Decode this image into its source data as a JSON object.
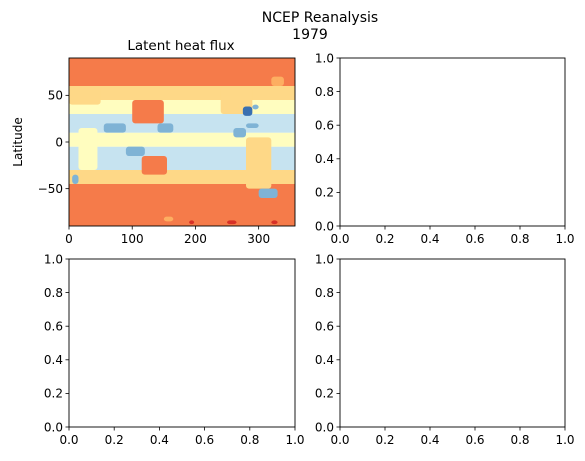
{
  "figure": {
    "suptitle_line1": "NCEP Reanalysis",
    "suptitle_line2": "1979"
  },
  "colors": {
    "deep_red": "#d73027",
    "orange_red": "#f57b4a",
    "light_orange": "#fdae61",
    "tan": "#fed887",
    "pale_yellow": "#fffdbf",
    "pale_blue": "#c6e3f0",
    "mid_blue": "#7fb3d5",
    "dark_blue": "#3a6fb0"
  },
  "chart_data": [
    {
      "panel": "top-left",
      "type": "heatmap",
      "title": "Latent heat flux",
      "xlabel": "",
      "ylabel": "Latitude",
      "xlim": [
        0,
        357.5
      ],
      "ylim": [
        -90,
        90
      ],
      "xticks": [
        0,
        100,
        200,
        300
      ],
      "yticks": [
        -50,
        0,
        50
      ],
      "xtick_labels": [
        "0",
        "100",
        "200",
        "300"
      ],
      "ytick_labels": [
        "−50",
        "0",
        "50"
      ],
      "bands": [
        {
          "lat_range": [
            -90,
            -45
          ],
          "color": "orange_red"
        },
        {
          "lat_range": [
            -45,
            -30
          ],
          "color": "tan"
        },
        {
          "lat_range": [
            -30,
            -5
          ],
          "color": "pale_blue"
        },
        {
          "lat_range": [
            -5,
            10
          ],
          "color": "pale_yellow"
        },
        {
          "lat_range": [
            10,
            30
          ],
          "color": "pale_blue"
        },
        {
          "lat_range": [
            30,
            45
          ],
          "color": "pale_yellow"
        },
        {
          "lat_range": [
            45,
            60
          ],
          "color": "tan"
        },
        {
          "lat_range": [
            60,
            90
          ],
          "color": "orange_red"
        }
      ],
      "patches": [
        {
          "lon": [
            0,
            50
          ],
          "lat": [
            40,
            60
          ],
          "color": "tan"
        },
        {
          "lon": [
            100,
            150
          ],
          "lat": [
            20,
            45
          ],
          "color": "orange_red"
        },
        {
          "lon": [
            15,
            45
          ],
          "lat": [
            -30,
            15
          ],
          "color": "pale_yellow"
        },
        {
          "lon": [
            115,
            155
          ],
          "lat": [
            -35,
            -15
          ],
          "color": "orange_red"
        },
        {
          "lon": [
            280,
            320
          ],
          "lat": [
            -50,
            5
          ],
          "color": "tan"
        },
        {
          "lon": [
            240,
            290
          ],
          "lat": [
            30,
            60
          ],
          "color": "tan"
        },
        {
          "lon": [
            55,
            90
          ],
          "lat": [
            10,
            20
          ],
          "color": "mid_blue"
        },
        {
          "lon": [
            140,
            165
          ],
          "lat": [
            10,
            20
          ],
          "color": "mid_blue"
        },
        {
          "lon": [
            260,
            280
          ],
          "lat": [
            5,
            15
          ],
          "color": "mid_blue"
        },
        {
          "lon": [
            90,
            120
          ],
          "lat": [
            -15,
            -5
          ],
          "color": "mid_blue"
        },
        {
          "lon": [
            5,
            15
          ],
          "lat": [
            -45,
            -35
          ],
          "color": "mid_blue"
        },
        {
          "lon": [
            300,
            330
          ],
          "lat": [
            -60,
            -50
          ],
          "color": "mid_blue"
        },
        {
          "lon": [
            320,
            340
          ],
          "lat": [
            60,
            70
          ],
          "color": "light_orange"
        },
        {
          "lon": [
            150,
            165
          ],
          "lat": [
            -85,
            -80
          ],
          "color": "light_orange"
        },
        {
          "lon": [
            280,
            300
          ],
          "lat": [
            15,
            20
          ],
          "color": "mid_blue"
        },
        {
          "lon": [
            275,
            290
          ],
          "lat": [
            28,
            38
          ],
          "color": "dark_blue"
        },
        {
          "lon": [
            290,
            300
          ],
          "lat": [
            35,
            40
          ],
          "color": "mid_blue"
        },
        {
          "lon": [
            190,
            198
          ],
          "lat": [
            -88,
            -84
          ],
          "color": "deep_red"
        },
        {
          "lon": [
            250,
            265
          ],
          "lat": [
            -88,
            -84
          ],
          "color": "deep_red"
        },
        {
          "lon": [
            320,
            330
          ],
          "lat": [
            -88,
            -84
          ],
          "color": "deep_red"
        }
      ]
    },
    {
      "panel": "top-right",
      "type": "scatter",
      "xlim": [
        0,
        1
      ],
      "ylim": [
        0,
        1
      ],
      "xtick_labels": [
        "0.0",
        "0.2",
        "0.4",
        "0.6",
        "0.8",
        "1.0"
      ],
      "ytick_labels": [
        "0.0",
        "0.2",
        "0.4",
        "0.6",
        "0.8",
        "1.0"
      ]
    },
    {
      "panel": "bottom-left",
      "type": "scatter",
      "xlim": [
        0,
        1
      ],
      "ylim": [
        0,
        1
      ],
      "xtick_labels": [
        "0.0",
        "0.2",
        "0.4",
        "0.6",
        "0.8",
        "1.0"
      ],
      "ytick_labels": [
        "0.0",
        "0.2",
        "0.4",
        "0.6",
        "0.8",
        "1.0"
      ]
    },
    {
      "panel": "bottom-right",
      "type": "scatter",
      "xlim": [
        0,
        1
      ],
      "ylim": [
        0,
        1
      ],
      "xtick_labels": [
        "0.0",
        "0.2",
        "0.4",
        "0.6",
        "0.8",
        "1.0"
      ],
      "ytick_labels": [
        "0.0",
        "0.2",
        "0.4",
        "0.6",
        "0.8",
        "1.0"
      ]
    }
  ]
}
